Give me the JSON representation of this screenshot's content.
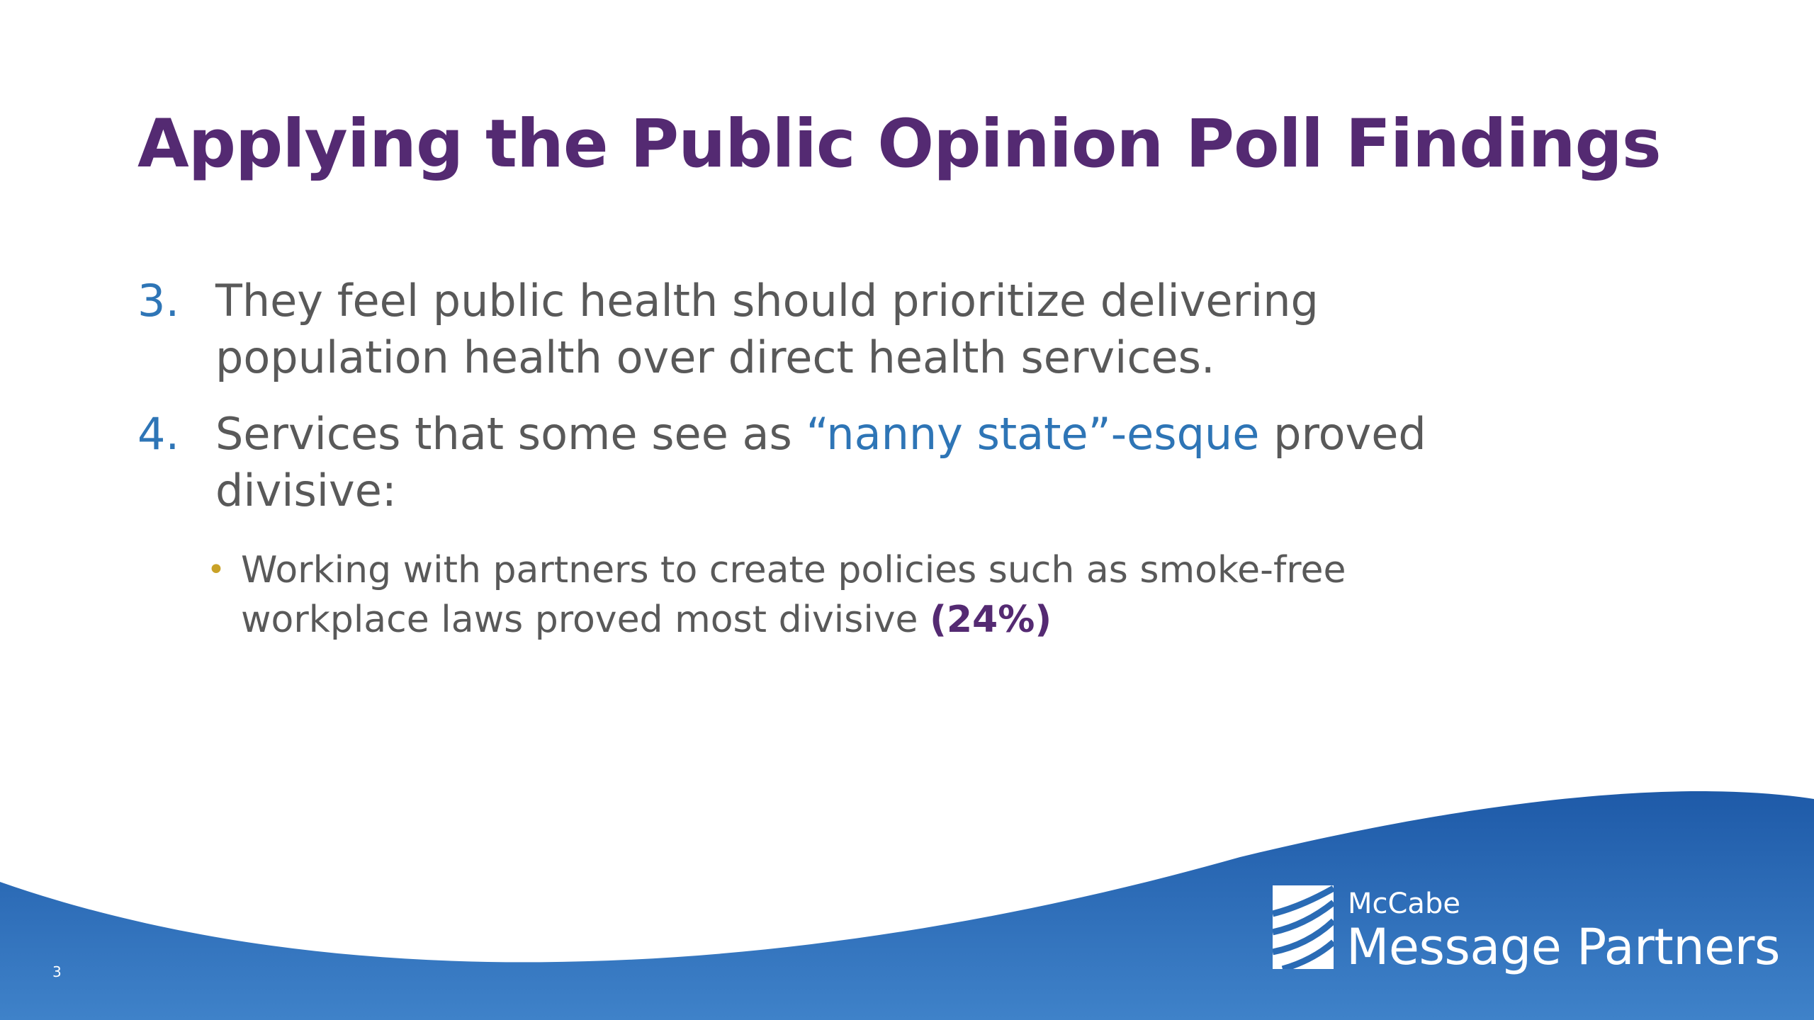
{
  "slide": {
    "title": "Applying the Public Opinion Poll Findings",
    "items": [
      {
        "number": "3.",
        "line1": "They feel public health should prioritize delivering",
        "line2": "population health over direct health services."
      },
      {
        "number": "4.",
        "text_before": "Services that some see as ",
        "highlight": "“nanny state”-esque",
        "text_after": " proved",
        "line2": "divisive:"
      }
    ],
    "sub_bullet": {
      "symbol": "•",
      "line1": "Working with partners to create policies such as smoke-free",
      "line2_before": "workplace laws proved most divisive ",
      "percent": "(24%)"
    },
    "page_number": "3"
  },
  "logo": {
    "line1": "McCabe",
    "line2": "Message Partners"
  },
  "colors": {
    "title": "#542a72",
    "body_text": "#595959",
    "accent_blue": "#2e75b6",
    "bullet_gold": "#c9a227",
    "wave_dark": "#1e5aa8",
    "wave_light": "#3f82c9"
  }
}
